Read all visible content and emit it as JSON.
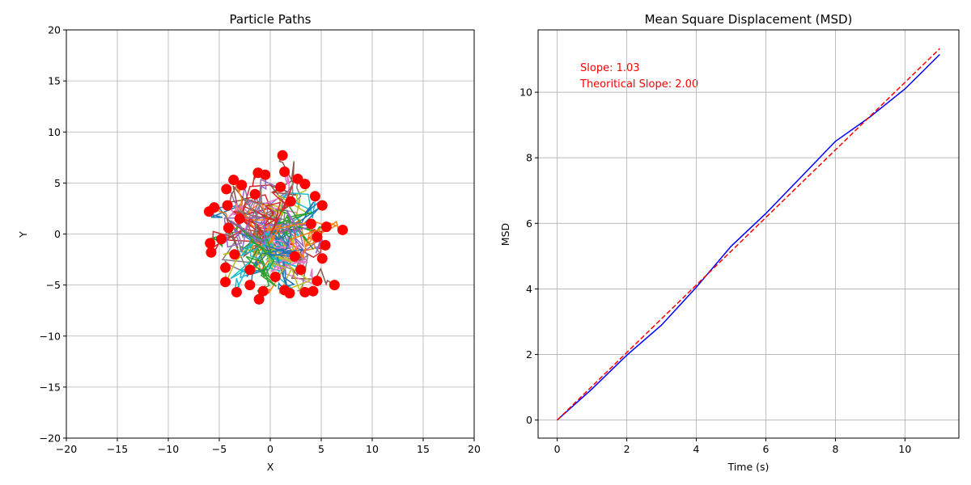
{
  "chart_data": [
    {
      "type": "line",
      "title": "Particle Paths",
      "xlabel": "X",
      "ylabel": "Y",
      "xlim": [
        -20,
        20
      ],
      "ylim": [
        -20,
        20
      ],
      "xticks": [
        "−20",
        "−15",
        "−10",
        "−5",
        "0",
        "5",
        "10",
        "15",
        "20"
      ],
      "yticks": [
        "−20",
        "−15",
        "−10",
        "−5",
        "0",
        "5",
        "10",
        "15",
        "20"
      ],
      "grid": true,
      "marker_color": "#ff0000",
      "path_colors": [
        "#1f77b4",
        "#ff7f0e",
        "#2ca02c",
        "#d62728",
        "#9467bd",
        "#8c564b",
        "#e377c2",
        "#7f7f7f",
        "#bcbd22",
        "#17becf"
      ],
      "final_positions": [
        [
          -6.0,
          2.2
        ],
        [
          -5.5,
          2.6
        ],
        [
          -5.9,
          -0.9
        ],
        [
          -5.8,
          -1.8
        ],
        [
          -4.3,
          4.4
        ],
        [
          -3.6,
          5.3
        ],
        [
          -4.2,
          2.8
        ],
        [
          -4.4,
          -3.3
        ],
        [
          -4.4,
          -4.7
        ],
        [
          -3.3,
          -5.7
        ],
        [
          -2.0,
          -5.0
        ],
        [
          -1.1,
          -6.4
        ],
        [
          -0.7,
          -5.6
        ],
        [
          -1.2,
          6.0
        ],
        [
          -0.5,
          5.8
        ],
        [
          1.2,
          7.7
        ],
        [
          1.4,
          6.1
        ],
        [
          2.7,
          5.4
        ],
        [
          3.4,
          4.9
        ],
        [
          4.4,
          3.7
        ],
        [
          5.1,
          2.8
        ],
        [
          7.1,
          0.4
        ],
        [
          5.5,
          0.7
        ],
        [
          5.4,
          -1.1
        ],
        [
          5.1,
          -2.4
        ],
        [
          6.3,
          -5.0
        ],
        [
          4.6,
          -4.6
        ],
        [
          4.2,
          -5.6
        ],
        [
          3.4,
          -5.7
        ],
        [
          1.9,
          -5.8
        ],
        [
          1.4,
          -5.5
        ],
        [
          -2.8,
          4.8
        ],
        [
          2.0,
          3.2
        ],
        [
          -3.0,
          1.5
        ],
        [
          4.0,
          1.0
        ],
        [
          -4.8,
          -0.5
        ],
        [
          3.0,
          -3.5
        ],
        [
          -1.5,
          3.9
        ],
        [
          0.5,
          -4.2
        ],
        [
          -3.5,
          -2.0
        ],
        [
          2.4,
          -2.2
        ],
        [
          4.6,
          -0.3
        ],
        [
          -2.0,
          -3.5
        ],
        [
          1.0,
          4.6
        ],
        [
          -4.1,
          0.6
        ]
      ]
    },
    {
      "type": "line",
      "title": "Mean Square Displacement (MSD)",
      "xlabel": "Time (s)",
      "ylabel": "MSD",
      "xlim": [
        -0.55,
        11.55
      ],
      "ylim": [
        -0.55,
        11.9
      ],
      "xticks": [
        0,
        2,
        4,
        6,
        8,
        10
      ],
      "yticks": [
        0,
        2,
        4,
        6,
        8,
        10
      ],
      "grid": true,
      "series": [
        {
          "color": "#0000ff",
          "style": "solid",
          "x": [
            0,
            1,
            2,
            3,
            4,
            5,
            6,
            7,
            8,
            9,
            10,
            11
          ],
          "y": [
            0.0,
            0.95,
            1.98,
            2.9,
            4.05,
            5.3,
            6.3,
            7.4,
            8.5,
            9.25,
            10.1,
            11.15
          ]
        },
        {
          "color": "#ff0000",
          "style": "dashed",
          "x": [
            0,
            11
          ],
          "y": [
            0.0,
            11.33
          ]
        }
      ],
      "annotations": [
        "Slope: 1.03",
        "Theoritical Slope: 2.00"
      ]
    }
  ]
}
